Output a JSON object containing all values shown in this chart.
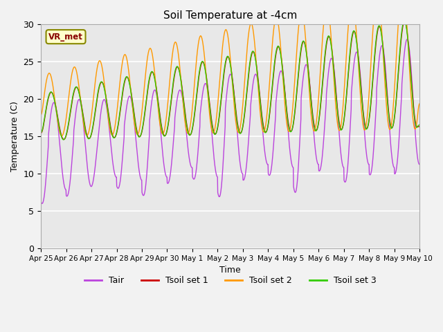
{
  "title": "Soil Temperature at -4cm",
  "xlabel": "Time",
  "ylabel": "Temperature (C)",
  "ylim": [
    0,
    30
  ],
  "background_color": "#e8e8e8",
  "fig_color": "#f2f2f2",
  "label_box": "VR_met",
  "legend_labels": [
    "Tair",
    "Tsoil set 1",
    "Tsoil set 2",
    "Tsoil set 3"
  ],
  "line_colors": [
    "#bb44dd",
    "#cc0000",
    "#ff9900",
    "#33cc00"
  ],
  "tick_labels": [
    "Apr 25",
    "Apr 26",
    "Apr 27",
    "Apr 28",
    "Apr 29",
    "Apr 30",
    "May 1",
    "May 2",
    "May 3",
    "May 4",
    "May 5",
    "May 6",
    "May 7",
    "May 8",
    "May 9",
    "May 10"
  ],
  "grid_color": "#ffffff",
  "spine_color": "#aaaaaa"
}
